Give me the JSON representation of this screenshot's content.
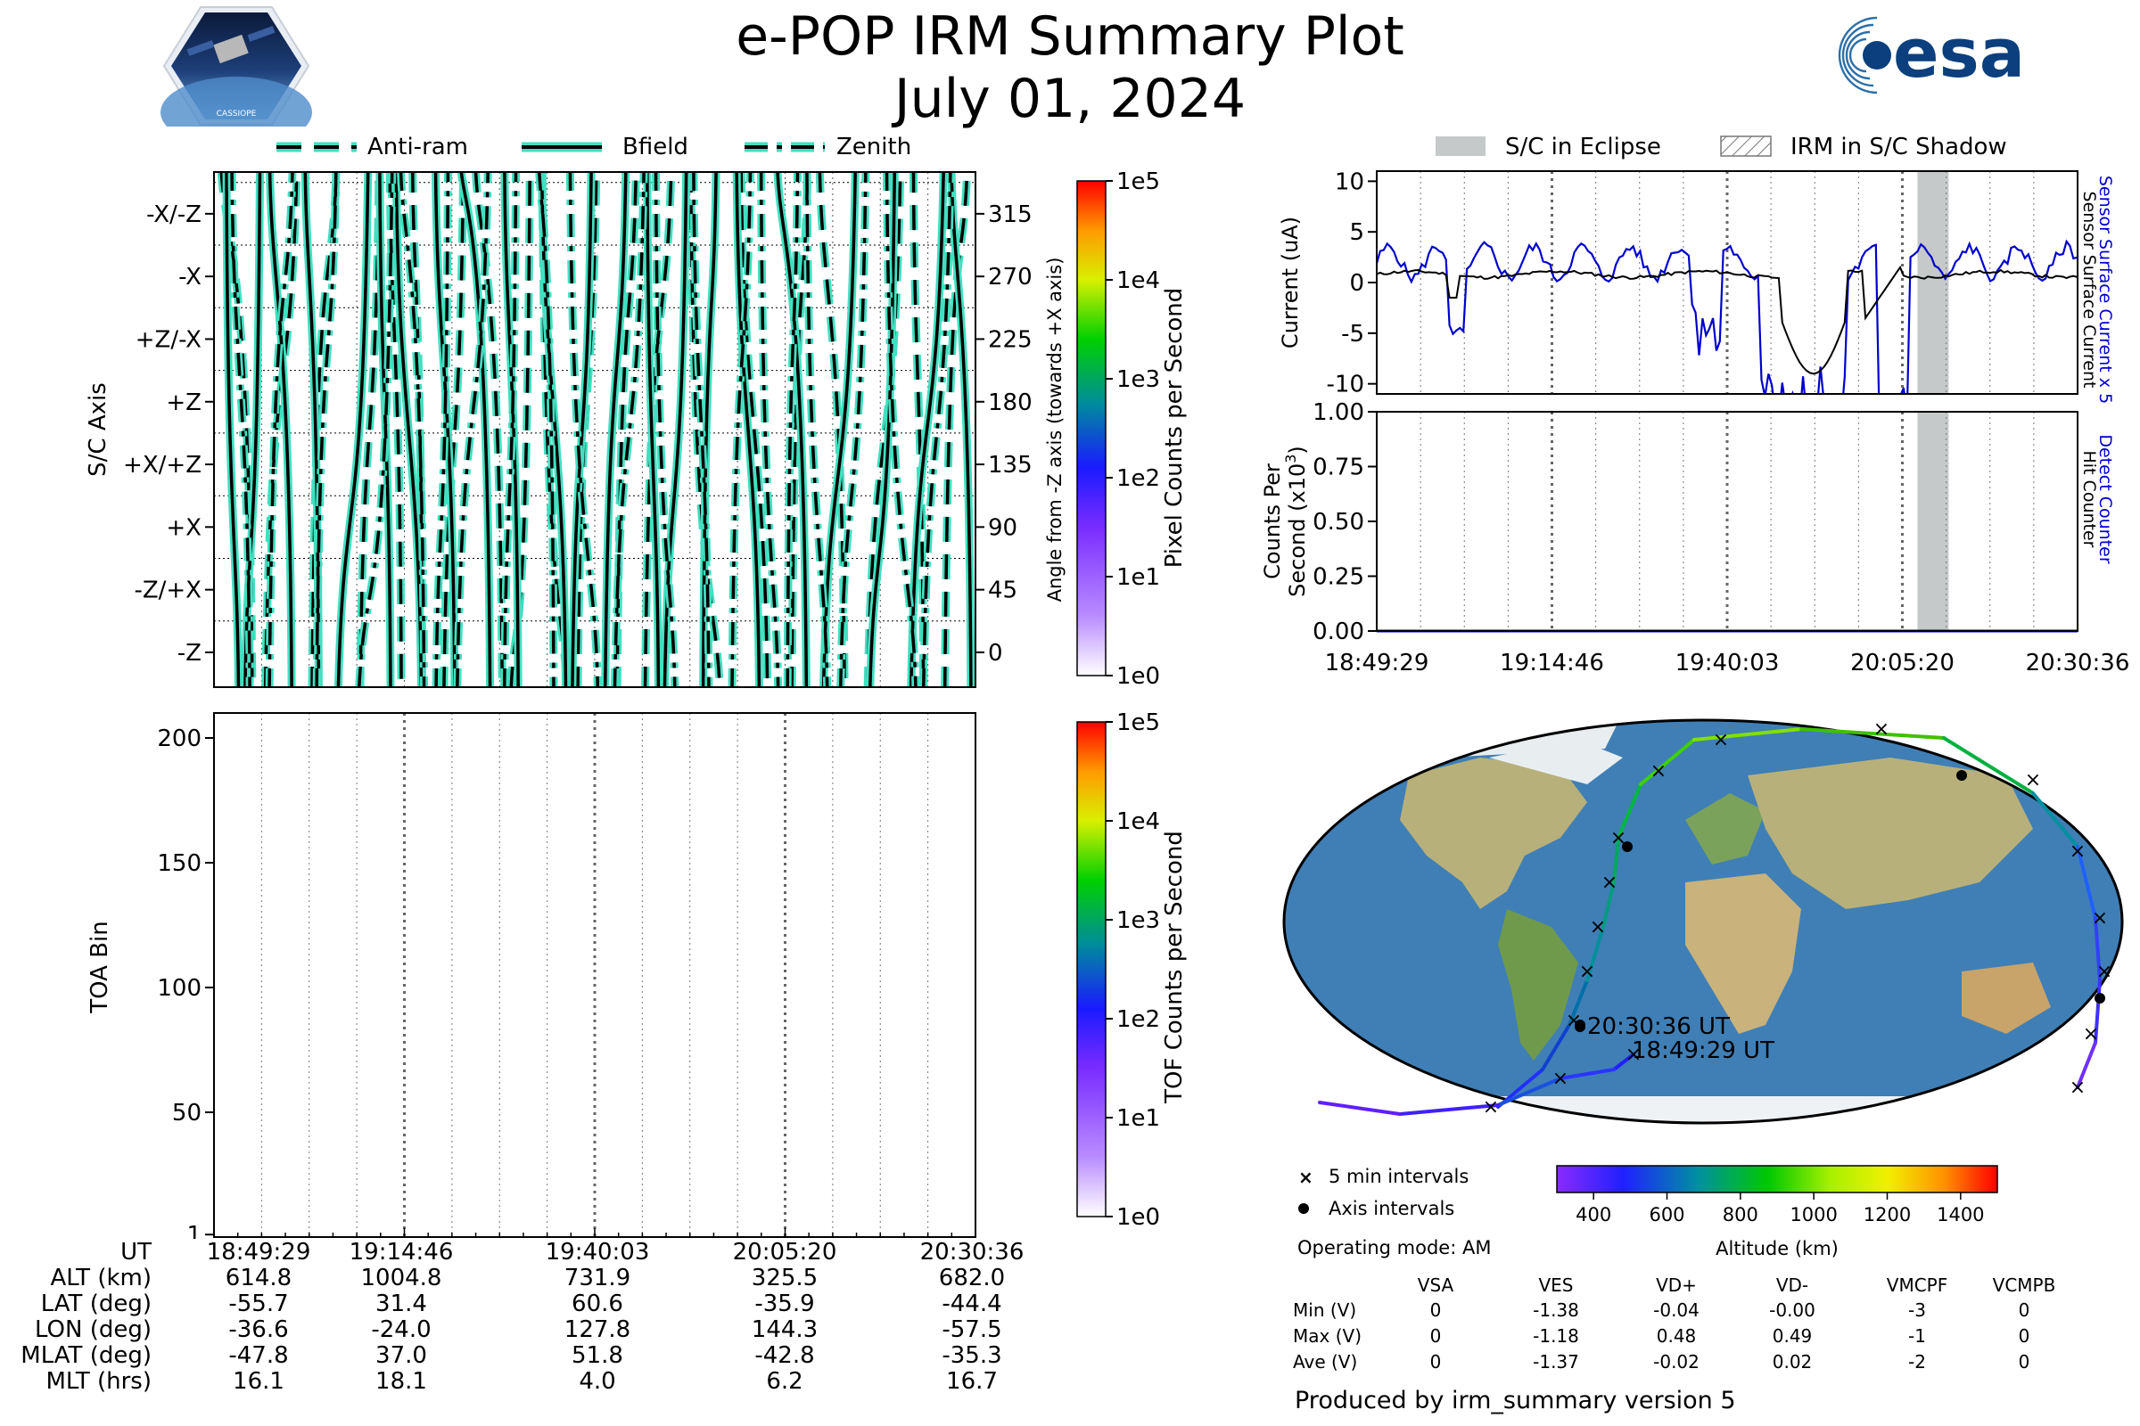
{
  "header": {
    "title": "e-POP IRM Summary Plot",
    "date": "July 01, 2024",
    "logo_left_text": "CASSIOPE",
    "logo_right_text": "esa"
  },
  "colors": {
    "trace_fill": "#40e0c0",
    "current_blue": "#0000cc",
    "eclipse_gray": "#c5c9c9"
  },
  "legend_top": [
    "Anti-ram",
    "Bfield",
    "Zenith"
  ],
  "legend_right": [
    "S/C in Eclipse",
    "IRM in S/C Shadow"
  ],
  "time_ticks": [
    "18:49:29",
    "19:14:46",
    "19:40:03",
    "20:05:20",
    "20:30:36"
  ],
  "chart_data": [
    {
      "type": "line",
      "name": "attitude",
      "ylabel": "S/C Axis",
      "y2label": "Angle from -Z axis (towards +X axis)",
      "axis_labels": [
        "-X/-Z",
        "-X",
        "+Z/-X",
        "+Z",
        "+X/+Z",
        "+X",
        "-Z/+X",
        "-Z"
      ],
      "angle_ticks": [
        315,
        270,
        225,
        180,
        135,
        90,
        45,
        0
      ],
      "ylim": [
        -25,
        345
      ],
      "series": [
        {
          "name": "Anti-ram"
        },
        {
          "name": "Bfield"
        },
        {
          "name": "Zenith"
        }
      ],
      "colorbar": {
        "label": "Pixel Counts per Second",
        "ticks": [
          "1e5",
          "1e4",
          "1e3",
          "1e2",
          "1e1",
          "1e0"
        ]
      }
    },
    {
      "type": "heatmap",
      "name": "toa",
      "ylabel": "TOA Bin",
      "yticks": [
        200,
        150,
        100,
        50,
        1
      ],
      "ylim": [
        0,
        210
      ],
      "colorbar": {
        "label": "TOF Counts per Second",
        "ticks": [
          "1e5",
          "1e4",
          "1e3",
          "1e2",
          "1e1",
          "1e0"
        ]
      }
    },
    {
      "type": "line",
      "name": "current",
      "ylabel": "Current (uA)",
      "right_label_blue": "Sensor Surface Current x 5",
      "right_label_black": "Sensor Surface Current",
      "yticks": [
        10,
        5,
        0,
        -5,
        -10
      ],
      "ylim": [
        -11,
        11
      ],
      "eclipse_range_minutes": [
        78,
        82.5
      ]
    },
    {
      "type": "line",
      "name": "counts",
      "ylabel_line1": "Counts Per",
      "ylabel_line2": "Second (x10",
      "ylabel_sup": "3",
      "ylabel_end": ")",
      "right_label_blue": "Detect Counter",
      "right_label_black": "Hit Counter",
      "yticks": [
        "1.00",
        "0.75",
        "0.50",
        "0.25",
        "0.00"
      ],
      "ylim": [
        0,
        1
      ]
    },
    {
      "type": "scatter",
      "name": "ground-track",
      "start_label": "18:49:29 UT",
      "end_label": "20:30:36 UT",
      "colorbar": {
        "label": "Altitude (km)",
        "ticks": [
          400,
          600,
          800,
          1000,
          1200,
          1400
        ],
        "range": [
          300,
          1500
        ]
      }
    }
  ],
  "map_legend": {
    "five_min": "5 min intervals",
    "axis": "Axis intervals"
  },
  "operating_mode": "Operating mode: AM",
  "ephemeris": {
    "rows": [
      {
        "label": "UT",
        "values": [
          "18:49:29",
          "19:14:46",
          "19:40:03",
          "20:05:20",
          "20:30:36"
        ]
      },
      {
        "label": "ALT (km)",
        "values": [
          "614.8",
          "1004.8",
          "731.9",
          "325.5",
          "682.0"
        ]
      },
      {
        "label": "LAT (deg)",
        "values": [
          "-55.7",
          "31.4",
          "60.6",
          "-35.9",
          "-44.4"
        ]
      },
      {
        "label": "LON (deg)",
        "values": [
          "-36.6",
          "-24.0",
          "127.8",
          "144.3",
          "-57.5"
        ]
      },
      {
        "label": "MLAT (deg)",
        "values": [
          "-47.8",
          "37.0",
          "51.8",
          "-42.8",
          "-35.3"
        ]
      },
      {
        "label": "MLT (hrs)",
        "values": [
          "16.1",
          "18.1",
          "4.0",
          "6.2",
          "16.7"
        ]
      }
    ]
  },
  "voltage_table": {
    "headers": [
      "",
      "VSA",
      "VES",
      "VD+",
      "VD-",
      "VMCPF",
      "VCMPB"
    ],
    "rows": [
      [
        "Min (V)",
        "0",
        "-1.38",
        "-0.04",
        "-0.00",
        "-3",
        "0"
      ],
      [
        "Max (V)",
        "0",
        "-1.18",
        "0.48",
        "0.49",
        "-1",
        "0"
      ],
      [
        "Ave (V)",
        "0",
        "-1.37",
        "-0.02",
        "0.02",
        "-2",
        "0"
      ]
    ]
  },
  "footer": "Produced by irm_summary version 5"
}
